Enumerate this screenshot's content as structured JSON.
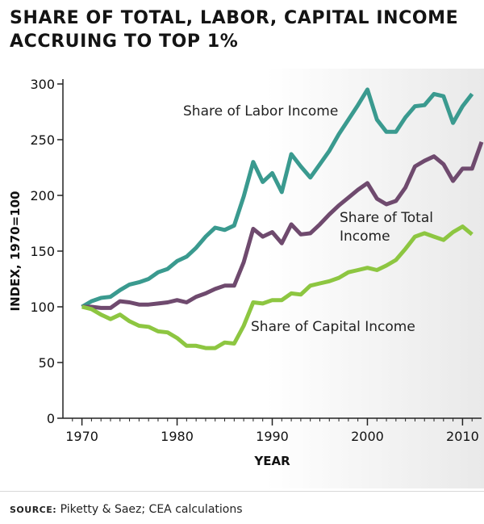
{
  "title_line1": "SHARE OF TOTAL, LABOR, CAPITAL INCOME",
  "title_line2": "ACCRUING TO TOP 1%",
  "source_label": "SOURCE:",
  "source_text": "Piketty & Saez; CEA calculations",
  "chart_data": {
    "type": "line",
    "xlabel": "YEAR",
    "ylabel": "INDEX, 1970=100",
    "xlim": [
      1968,
      2012
    ],
    "ylim": [
      0,
      300
    ],
    "x_ticks": [
      1970,
      1980,
      1990,
      2000,
      2010
    ],
    "y_ticks": [
      0,
      50,
      100,
      150,
      200,
      250,
      300
    ],
    "grid": false,
    "x": [
      1970,
      1971,
      1972,
      1973,
      1974,
      1975,
      1976,
      1977,
      1978,
      1979,
      1980,
      1981,
      1982,
      1983,
      1984,
      1985,
      1986,
      1987,
      1988,
      1989,
      1990,
      1991,
      1992,
      1993,
      1994,
      1995,
      1996,
      1997,
      1998,
      1999,
      2000,
      2001,
      2002,
      2003,
      2004,
      2005,
      2006,
      2007,
      2008,
      2009,
      2010,
      2011,
      2012
    ],
    "series": [
      {
        "name": "Share of Labor Income",
        "color": "#3a9a8f",
        "values": [
          100,
          105,
          108,
          109,
          115,
          120,
          122,
          125,
          131,
          134,
          141,
          145,
          153,
          163,
          171,
          169,
          173,
          199,
          230,
          212,
          220,
          203,
          237,
          226,
          216,
          228,
          240,
          255,
          268,
          281,
          295,
          268,
          257,
          257,
          270,
          280,
          281,
          291,
          289,
          265,
          280,
          291,
          null
        ]
      },
      {
        "name": "Share of Total Income",
        "color": "#6f4a6e",
        "values": [
          100,
          100,
          99,
          99,
          105,
          104,
          102,
          102,
          103,
          104,
          106,
          104,
          109,
          112,
          116,
          119,
          119,
          140,
          170,
          163,
          167,
          157,
          174,
          165,
          166,
          174,
          183,
          191,
          198,
          205,
          211,
          197,
          192,
          195,
          207,
          226,
          231,
          235,
          228,
          213,
          224,
          224,
          248
        ]
      },
      {
        "name": "Share of Capital Income",
        "color": "#8dc641",
        "values": [
          100,
          98,
          93,
          89,
          93,
          87,
          83,
          82,
          78,
          77,
          72,
          65,
          65,
          63,
          63,
          68,
          67,
          83,
          104,
          103,
          106,
          106,
          112,
          111,
          119,
          121,
          123,
          126,
          131,
          133,
          135,
          133,
          137,
          142,
          152,
          163,
          166,
          163,
          160,
          167,
          172,
          165,
          null
        ]
      }
    ],
    "annotations": [
      {
        "series": 0,
        "label": "Share of Labor Income"
      },
      {
        "series": 1,
        "label_line1": "Share of Total",
        "label_line2": "Income"
      },
      {
        "series": 2,
        "label": "Share of Capital Income"
      }
    ]
  }
}
